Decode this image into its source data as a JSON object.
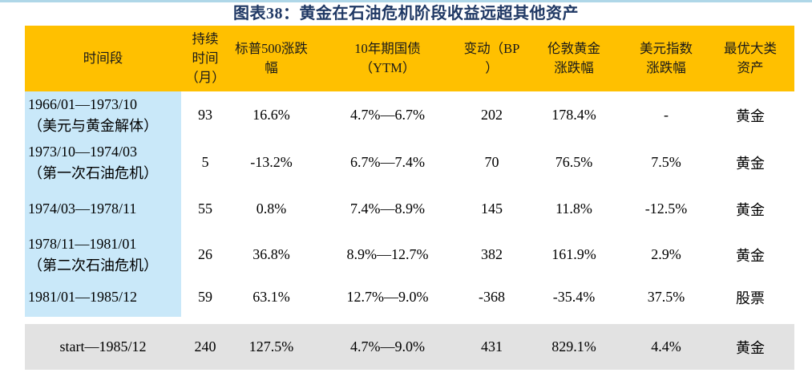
{
  "title": "图表38：黄金在石油危机阶段收益远超其他资产",
  "colors": {
    "header_bg": "#FFC000",
    "period_col_bg": "#C9E8F9",
    "total_row_bg": "#E2E2E2",
    "title_color": "#1F3864",
    "top_rule": "#AFD7E8",
    "text": "#000000"
  },
  "chart_data": {
    "type": "table",
    "title": "图表38：黄金在石油危机阶段收益远超其他资产",
    "columns": [
      "时间段",
      "持续\n时间\n（月）",
      "标普500涨跌\n幅",
      "10年期国债\n（YTM）",
      "变动（BP\n）",
      "伦敦黄金\n涨跌幅",
      "美元指数\n涨跌幅",
      "最优大类\n资产"
    ],
    "rows": [
      [
        "1966/01—1973/10\n（美元与黄金解体）",
        "93",
        "16.6%",
        "4.7%—6.7%",
        "202",
        "178.4%",
        "-",
        "黄金"
      ],
      [
        "1973/10—1974/03\n（第一次石油危机）",
        "5",
        "-13.2%",
        "6.7%—7.4%",
        "70",
        "76.5%",
        "7.5%",
        "黄金"
      ],
      [
        "1974/03—1978/11",
        "55",
        "0.8%",
        "7.4%—8.9%",
        "145",
        "11.8%",
        "-12.5%",
        "黄金"
      ],
      [
        "1978/11—1981/01\n（第二次石油危机）",
        "26",
        "36.8%",
        "8.9%—12.7%",
        "382",
        "161.9%",
        "2.9%",
        "黄金"
      ],
      [
        "1981/01—1985/12",
        "59",
        "63.1%",
        "12.7%—9.0%",
        "-368",
        "-35.4%",
        "37.5%",
        "股票"
      ],
      [
        "start—1985/12",
        "240",
        "127.5%",
        "4.7%—9.0%",
        "431",
        "829.1%",
        "4.4%",
        "黄金"
      ]
    ],
    "total_row_index": 5
  }
}
